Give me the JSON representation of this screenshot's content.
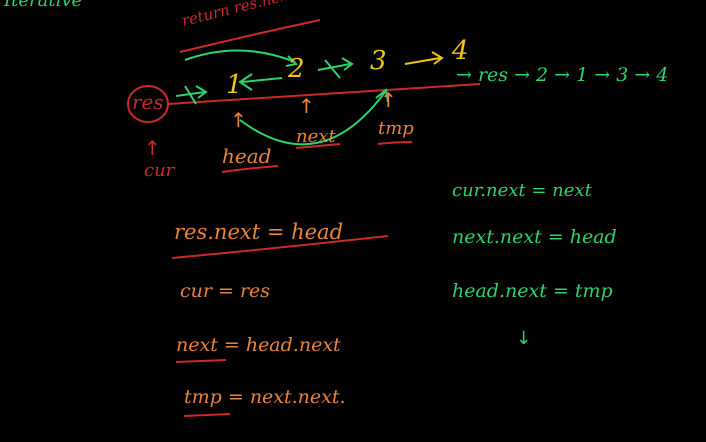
{
  "colors": {
    "background": "#000000",
    "red": "#cc2a2a",
    "orange": "#e8843a",
    "green": "#2fd26a",
    "yellow": "#f2c418",
    "white": "#e8e8e8"
  },
  "header": {
    "partial_title": "Iterative"
  },
  "diagram": {
    "return_label": "return res.next",
    "nodes": {
      "res": "res",
      "n1": "1",
      "n2": "2",
      "n3": "3",
      "n4": "4"
    },
    "pointers": {
      "cur": "cur",
      "head": "head",
      "next": "next",
      "tmp": "tmp"
    },
    "up_arrow": "↑",
    "down_arrow": "↓",
    "result_list": "→ res → 2 → 1 → 3 → 4"
  },
  "setup_code": {
    "line1": "res.next = head",
    "line2": "cur = res",
    "line3": "next = head.next",
    "line4": "tmp = next.next."
  },
  "swap_code": {
    "line1": "cur.next = next",
    "line2": "next.next = head",
    "line3": "head.next = tmp"
  }
}
